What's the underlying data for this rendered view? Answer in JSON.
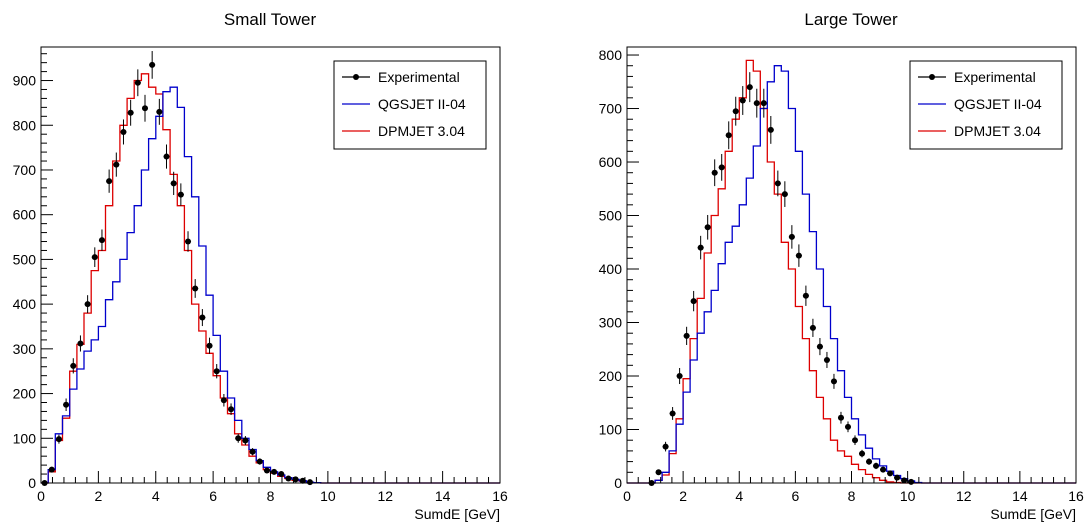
{
  "colors": {
    "experimental": "#000000",
    "qgsjet": "#0000cc",
    "dpmjet": "#dd0000",
    "frame": "#000000"
  },
  "chart_data": [
    {
      "type": "histogram",
      "title": "Small Tower",
      "xlabel": "SumdE [GeV]",
      "ylabel": "",
      "xlim": [
        0,
        16
      ],
      "ylim": [
        0,
        975
      ],
      "xticks": [
        0,
        2,
        4,
        6,
        8,
        10,
        12,
        14,
        16
      ],
      "yticks": [
        0,
        100,
        200,
        300,
        400,
        500,
        600,
        700,
        800,
        900
      ],
      "bin_edges_start": 0,
      "bin_width": 0.25,
      "legend": {
        "position": "top-right",
        "entries": [
          "Experimental",
          "QGSJET II-04",
          "DPMJET 3.04"
        ]
      },
      "series": [
        {
          "name": "Experimental",
          "style": "points-with-errors",
          "x": [
            0.125,
            0.375,
            0.625,
            0.875,
            1.125,
            1.375,
            1.625,
            1.875,
            2.125,
            2.375,
            2.625,
            2.875,
            3.125,
            3.375,
            3.625,
            3.875,
            4.125,
            4.375,
            4.625,
            4.875,
            5.125,
            5.375,
            5.625,
            5.875,
            6.125,
            6.375,
            6.625,
            6.875,
            7.125,
            7.375,
            7.625,
            7.875,
            8.125,
            8.375,
            8.625,
            8.875,
            9.125,
            9.375
          ],
          "y": [
            0,
            30,
            98,
            175,
            262,
            312,
            400,
            505,
            543,
            675,
            712,
            785,
            828,
            895,
            838,
            935,
            830,
            730,
            670,
            645,
            540,
            435,
            370,
            307,
            250,
            185,
            165,
            100,
            95,
            70,
            48,
            28,
            25,
            20,
            10,
            8,
            5,
            2
          ],
          "err": [
            0,
            6,
            10,
            14,
            17,
            18,
            20,
            22,
            24,
            26,
            27,
            28,
            29,
            30,
            30,
            31,
            29,
            27,
            26,
            25,
            23,
            21,
            19,
            18,
            16,
            14,
            13,
            10,
            10,
            8,
            7,
            5,
            5,
            4,
            3,
            3,
            2,
            2
          ]
        },
        {
          "name": "QGSJET II-04",
          "style": "step",
          "values": [
            0,
            30,
            110,
            150,
            210,
            255,
            295,
            320,
            350,
            410,
            450,
            500,
            560,
            620,
            700,
            770,
            820,
            875,
            885,
            840,
            730,
            640,
            530,
            420,
            330,
            250,
            190,
            140,
            100,
            75,
            50,
            35,
            25,
            18,
            12,
            8,
            5,
            2,
            1,
            0,
            0,
            0,
            0,
            0,
            0,
            0,
            0,
            0,
            0,
            0,
            0,
            0,
            0,
            0,
            0,
            0,
            0,
            0,
            0,
            0,
            0,
            0,
            0,
            0
          ]
        },
        {
          "name": "DPMJET 3.04",
          "style": "step",
          "values": [
            0,
            25,
            95,
            145,
            250,
            310,
            380,
            475,
            520,
            620,
            720,
            800,
            860,
            900,
            915,
            885,
            870,
            790,
            690,
            620,
            520,
            400,
            340,
            290,
            240,
            190,
            155,
            110,
            85,
            60,
            45,
            30,
            22,
            15,
            10,
            6,
            4,
            2,
            1,
            0,
            0,
            0,
            0,
            0,
            0,
            0,
            0,
            0,
            0,
            0,
            0,
            0,
            0,
            0,
            0,
            0,
            0,
            0,
            0,
            0,
            0,
            0,
            0,
            0
          ]
        }
      ]
    },
    {
      "type": "histogram",
      "title": "Large Tower",
      "xlabel": "SumdE [GeV]",
      "ylabel": "",
      "xlim": [
        0,
        16
      ],
      "ylim": [
        0,
        815
      ],
      "xticks": [
        0,
        2,
        4,
        6,
        8,
        10,
        12,
        14,
        16
      ],
      "yticks": [
        0,
        100,
        200,
        300,
        400,
        500,
        600,
        700,
        800
      ],
      "bin_edges_start": 0,
      "bin_width": 0.25,
      "legend": {
        "position": "top-right",
        "entries": [
          "Experimental",
          "QGSJET II-04",
          "DPMJET 3.04"
        ]
      },
      "series": [
        {
          "name": "Experimental",
          "style": "points-with-errors",
          "x": [
            0.875,
            1.125,
            1.375,
            1.625,
            1.875,
            2.125,
            2.375,
            2.625,
            2.875,
            3.125,
            3.375,
            3.625,
            3.875,
            4.125,
            4.375,
            4.625,
            4.875,
            5.125,
            5.375,
            5.625,
            5.875,
            6.125,
            6.375,
            6.625,
            6.875,
            7.125,
            7.375,
            7.625,
            7.875,
            8.125,
            8.375,
            8.625,
            8.875,
            9.125,
            9.375,
            9.625,
            9.875,
            10.125
          ],
          "y": [
            0,
            20,
            68,
            130,
            200,
            275,
            340,
            440,
            478,
            580,
            590,
            650,
            695,
            715,
            740,
            710,
            710,
            660,
            560,
            540,
            460,
            425,
            350,
            290,
            255,
            230,
            190,
            122,
            105,
            80,
            55,
            40,
            32,
            25,
            18,
            10,
            5,
            2
          ],
          "err": [
            0,
            5,
            9,
            12,
            15,
            17,
            19,
            22,
            23,
            25,
            25,
            26,
            27,
            27,
            28,
            27,
            27,
            26,
            24,
            24,
            22,
            21,
            19,
            17,
            16,
            15,
            14,
            11,
            10,
            9,
            7,
            6,
            6,
            5,
            4,
            3,
            2,
            2
          ]
        },
        {
          "name": "QGSJET II-04",
          "style": "step",
          "values": [
            0,
            0,
            0,
            0,
            5,
            20,
            60,
            110,
            170,
            230,
            280,
            320,
            360,
            410,
            450,
            480,
            520,
            570,
            630,
            700,
            750,
            780,
            770,
            700,
            620,
            540,
            470,
            400,
            330,
            270,
            210,
            160,
            120,
            90,
            65,
            45,
            32,
            22,
            14,
            8,
            4,
            1,
            0,
            0,
            0,
            0,
            0,
            0,
            0,
            0,
            0,
            0,
            0,
            0,
            0,
            0,
            0,
            0,
            0,
            0,
            0,
            0,
            0,
            0
          ]
        },
        {
          "name": "DPMJET 3.04",
          "style": "step",
          "values": [
            0,
            0,
            0,
            0,
            5,
            15,
            55,
            120,
            195,
            270,
            345,
            430,
            500,
            550,
            620,
            680,
            720,
            790,
            770,
            700,
            600,
            540,
            450,
            400,
            330,
            270,
            210,
            160,
            120,
            80,
            60,
            50,
            35,
            25,
            16,
            10,
            5,
            2,
            1,
            0,
            0,
            0,
            0,
            0,
            0,
            0,
            0,
            0,
            0,
            0,
            0,
            0,
            0,
            0,
            0,
            0,
            0,
            0,
            0,
            0,
            0,
            0,
            0,
            0
          ]
        }
      ]
    }
  ]
}
